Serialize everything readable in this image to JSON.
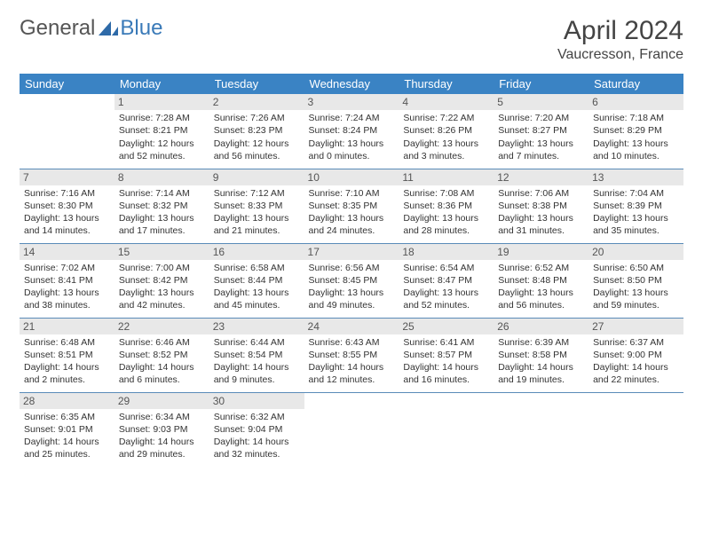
{
  "brand": {
    "part1": "General",
    "part2": "Blue"
  },
  "title": "April 2024",
  "location": "Vaucresson, France",
  "header_bg": "#3a83c4",
  "header_fg": "#ffffff",
  "daynum_bg": "#e8e8e8",
  "divider_color": "#5a8bb8",
  "text_color": "#333333",
  "days_of_week": [
    "Sunday",
    "Monday",
    "Tuesday",
    "Wednesday",
    "Thursday",
    "Friday",
    "Saturday"
  ],
  "weeks": [
    [
      {
        "n": "",
        "sr": "",
        "ss": "",
        "dl": ""
      },
      {
        "n": "1",
        "sr": "Sunrise: 7:28 AM",
        "ss": "Sunset: 8:21 PM",
        "dl": "Daylight: 12 hours and 52 minutes."
      },
      {
        "n": "2",
        "sr": "Sunrise: 7:26 AM",
        "ss": "Sunset: 8:23 PM",
        "dl": "Daylight: 12 hours and 56 minutes."
      },
      {
        "n": "3",
        "sr": "Sunrise: 7:24 AM",
        "ss": "Sunset: 8:24 PM",
        "dl": "Daylight: 13 hours and 0 minutes."
      },
      {
        "n": "4",
        "sr": "Sunrise: 7:22 AM",
        "ss": "Sunset: 8:26 PM",
        "dl": "Daylight: 13 hours and 3 minutes."
      },
      {
        "n": "5",
        "sr": "Sunrise: 7:20 AM",
        "ss": "Sunset: 8:27 PM",
        "dl": "Daylight: 13 hours and 7 minutes."
      },
      {
        "n": "6",
        "sr": "Sunrise: 7:18 AM",
        "ss": "Sunset: 8:29 PM",
        "dl": "Daylight: 13 hours and 10 minutes."
      }
    ],
    [
      {
        "n": "7",
        "sr": "Sunrise: 7:16 AM",
        "ss": "Sunset: 8:30 PM",
        "dl": "Daylight: 13 hours and 14 minutes."
      },
      {
        "n": "8",
        "sr": "Sunrise: 7:14 AM",
        "ss": "Sunset: 8:32 PM",
        "dl": "Daylight: 13 hours and 17 minutes."
      },
      {
        "n": "9",
        "sr": "Sunrise: 7:12 AM",
        "ss": "Sunset: 8:33 PM",
        "dl": "Daylight: 13 hours and 21 minutes."
      },
      {
        "n": "10",
        "sr": "Sunrise: 7:10 AM",
        "ss": "Sunset: 8:35 PM",
        "dl": "Daylight: 13 hours and 24 minutes."
      },
      {
        "n": "11",
        "sr": "Sunrise: 7:08 AM",
        "ss": "Sunset: 8:36 PM",
        "dl": "Daylight: 13 hours and 28 minutes."
      },
      {
        "n": "12",
        "sr": "Sunrise: 7:06 AM",
        "ss": "Sunset: 8:38 PM",
        "dl": "Daylight: 13 hours and 31 minutes."
      },
      {
        "n": "13",
        "sr": "Sunrise: 7:04 AM",
        "ss": "Sunset: 8:39 PM",
        "dl": "Daylight: 13 hours and 35 minutes."
      }
    ],
    [
      {
        "n": "14",
        "sr": "Sunrise: 7:02 AM",
        "ss": "Sunset: 8:41 PM",
        "dl": "Daylight: 13 hours and 38 minutes."
      },
      {
        "n": "15",
        "sr": "Sunrise: 7:00 AM",
        "ss": "Sunset: 8:42 PM",
        "dl": "Daylight: 13 hours and 42 minutes."
      },
      {
        "n": "16",
        "sr": "Sunrise: 6:58 AM",
        "ss": "Sunset: 8:44 PM",
        "dl": "Daylight: 13 hours and 45 minutes."
      },
      {
        "n": "17",
        "sr": "Sunrise: 6:56 AM",
        "ss": "Sunset: 8:45 PM",
        "dl": "Daylight: 13 hours and 49 minutes."
      },
      {
        "n": "18",
        "sr": "Sunrise: 6:54 AM",
        "ss": "Sunset: 8:47 PM",
        "dl": "Daylight: 13 hours and 52 minutes."
      },
      {
        "n": "19",
        "sr": "Sunrise: 6:52 AM",
        "ss": "Sunset: 8:48 PM",
        "dl": "Daylight: 13 hours and 56 minutes."
      },
      {
        "n": "20",
        "sr": "Sunrise: 6:50 AM",
        "ss": "Sunset: 8:50 PM",
        "dl": "Daylight: 13 hours and 59 minutes."
      }
    ],
    [
      {
        "n": "21",
        "sr": "Sunrise: 6:48 AM",
        "ss": "Sunset: 8:51 PM",
        "dl": "Daylight: 14 hours and 2 minutes."
      },
      {
        "n": "22",
        "sr": "Sunrise: 6:46 AM",
        "ss": "Sunset: 8:52 PM",
        "dl": "Daylight: 14 hours and 6 minutes."
      },
      {
        "n": "23",
        "sr": "Sunrise: 6:44 AM",
        "ss": "Sunset: 8:54 PM",
        "dl": "Daylight: 14 hours and 9 minutes."
      },
      {
        "n": "24",
        "sr": "Sunrise: 6:43 AM",
        "ss": "Sunset: 8:55 PM",
        "dl": "Daylight: 14 hours and 12 minutes."
      },
      {
        "n": "25",
        "sr": "Sunrise: 6:41 AM",
        "ss": "Sunset: 8:57 PM",
        "dl": "Daylight: 14 hours and 16 minutes."
      },
      {
        "n": "26",
        "sr": "Sunrise: 6:39 AM",
        "ss": "Sunset: 8:58 PM",
        "dl": "Daylight: 14 hours and 19 minutes."
      },
      {
        "n": "27",
        "sr": "Sunrise: 6:37 AM",
        "ss": "Sunset: 9:00 PM",
        "dl": "Daylight: 14 hours and 22 minutes."
      }
    ],
    [
      {
        "n": "28",
        "sr": "Sunrise: 6:35 AM",
        "ss": "Sunset: 9:01 PM",
        "dl": "Daylight: 14 hours and 25 minutes."
      },
      {
        "n": "29",
        "sr": "Sunrise: 6:34 AM",
        "ss": "Sunset: 9:03 PM",
        "dl": "Daylight: 14 hours and 29 minutes."
      },
      {
        "n": "30",
        "sr": "Sunrise: 6:32 AM",
        "ss": "Sunset: 9:04 PM",
        "dl": "Daylight: 14 hours and 32 minutes."
      },
      {
        "n": "",
        "sr": "",
        "ss": "",
        "dl": ""
      },
      {
        "n": "",
        "sr": "",
        "ss": "",
        "dl": ""
      },
      {
        "n": "",
        "sr": "",
        "ss": "",
        "dl": ""
      },
      {
        "n": "",
        "sr": "",
        "ss": "",
        "dl": ""
      }
    ]
  ]
}
